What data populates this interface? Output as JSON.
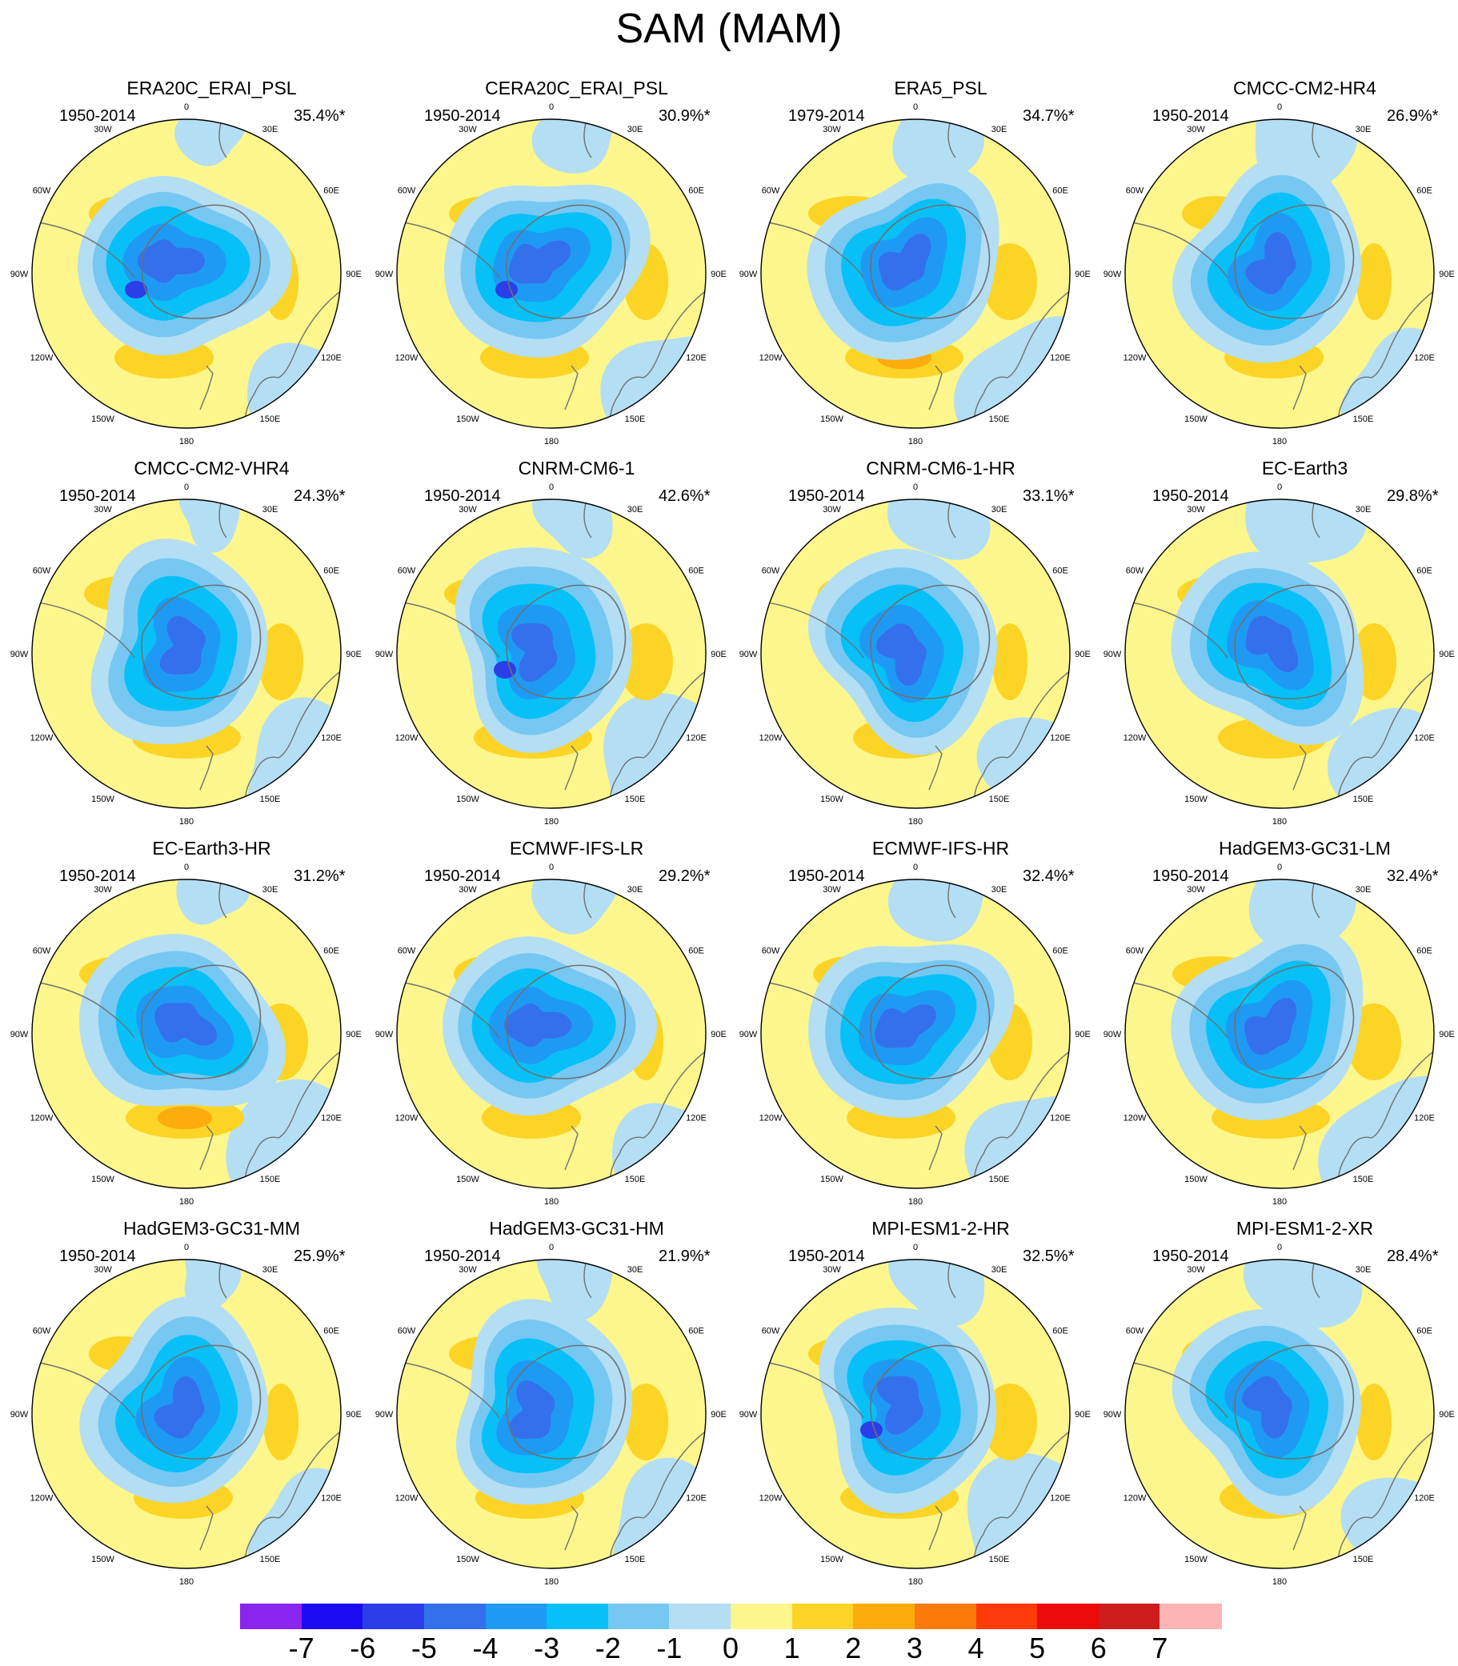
{
  "title": "SAM (MAM)",
  "panels": [
    {
      "name": "ERA20C_ERAI_PSL",
      "period": "1950-2014",
      "variance": "35.4%*"
    },
    {
      "name": "CERA20C_ERAI_PSL",
      "period": "1950-2014",
      "variance": "30.9%*"
    },
    {
      "name": "ERA5_PSL",
      "period": "1979-2014",
      "variance": "34.7%*"
    },
    {
      "name": "CMCC-CM2-HR4",
      "period": "1950-2014",
      "variance": "26.9%*"
    },
    {
      "name": "CMCC-CM2-VHR4",
      "period": "1950-2014",
      "variance": "24.3%*"
    },
    {
      "name": "CNRM-CM6-1",
      "period": "1950-2014",
      "variance": "42.6%*"
    },
    {
      "name": "CNRM-CM6-1-HR",
      "period": "1950-2014",
      "variance": "33.1%*"
    },
    {
      "name": "EC-Earth3",
      "period": "1950-2014",
      "variance": "29.8%*"
    },
    {
      "name": "EC-Earth3-HR",
      "period": "1950-2014",
      "variance": "31.2%*"
    },
    {
      "name": "ECMWF-IFS-LR",
      "period": "1950-2014",
      "variance": "29.2%*"
    },
    {
      "name": "ECMWF-IFS-HR",
      "period": "1950-2014",
      "variance": "32.4%*"
    },
    {
      "name": "HadGEM3-GC31-LM",
      "period": "1950-2014",
      "variance": "32.4%*"
    },
    {
      "name": "HadGEM3-GC31-MM",
      "period": "1950-2014",
      "variance": "25.9%*"
    },
    {
      "name": "HadGEM3-GC31-HM",
      "period": "1950-2014",
      "variance": "21.9%*"
    },
    {
      "name": "MPI-ESM1-2-HR",
      "period": "1950-2014",
      "variance": "32.5%*"
    },
    {
      "name": "MPI-ESM1-2-XR",
      "period": "1950-2014",
      "variance": "28.4%*"
    }
  ],
  "longitude_labels": [
    "0",
    "30E",
    "60E",
    "90E",
    "120E",
    "150E",
    "180",
    "150W",
    "120W",
    "90W",
    "60W",
    "30W"
  ],
  "colorbar": {
    "labels": [
      "-7",
      "-6",
      "-5",
      "-4",
      "-3",
      "-2",
      "-1",
      "0",
      "1",
      "2",
      "3",
      "4",
      "5",
      "6",
      "7"
    ],
    "colors": [
      "#8a24ee",
      "#1c0cf4",
      "#2c3ee8",
      "#3570ec",
      "#1f9af4",
      "#07c0f8",
      "#76c8f2",
      "#b4def4",
      "#fcf68c",
      "#fcd425",
      "#fcac0c",
      "#fc7a0a",
      "#fc3a0a",
      "#ec0a0a",
      "#cc1c1c",
      "#fcb4b4"
    ]
  },
  "map_colors": {
    "background": "#fcf68c",
    "neg1": "#b4def4",
    "neg2": "#76c8f2",
    "neg3": "#07c0f8",
    "neg4": "#1f9af4",
    "neg5": "#3570ec",
    "neg6": "#2c3ee8",
    "pos2": "#fcd425",
    "pos3": "#fcac0c",
    "coast": "#707070"
  }
}
